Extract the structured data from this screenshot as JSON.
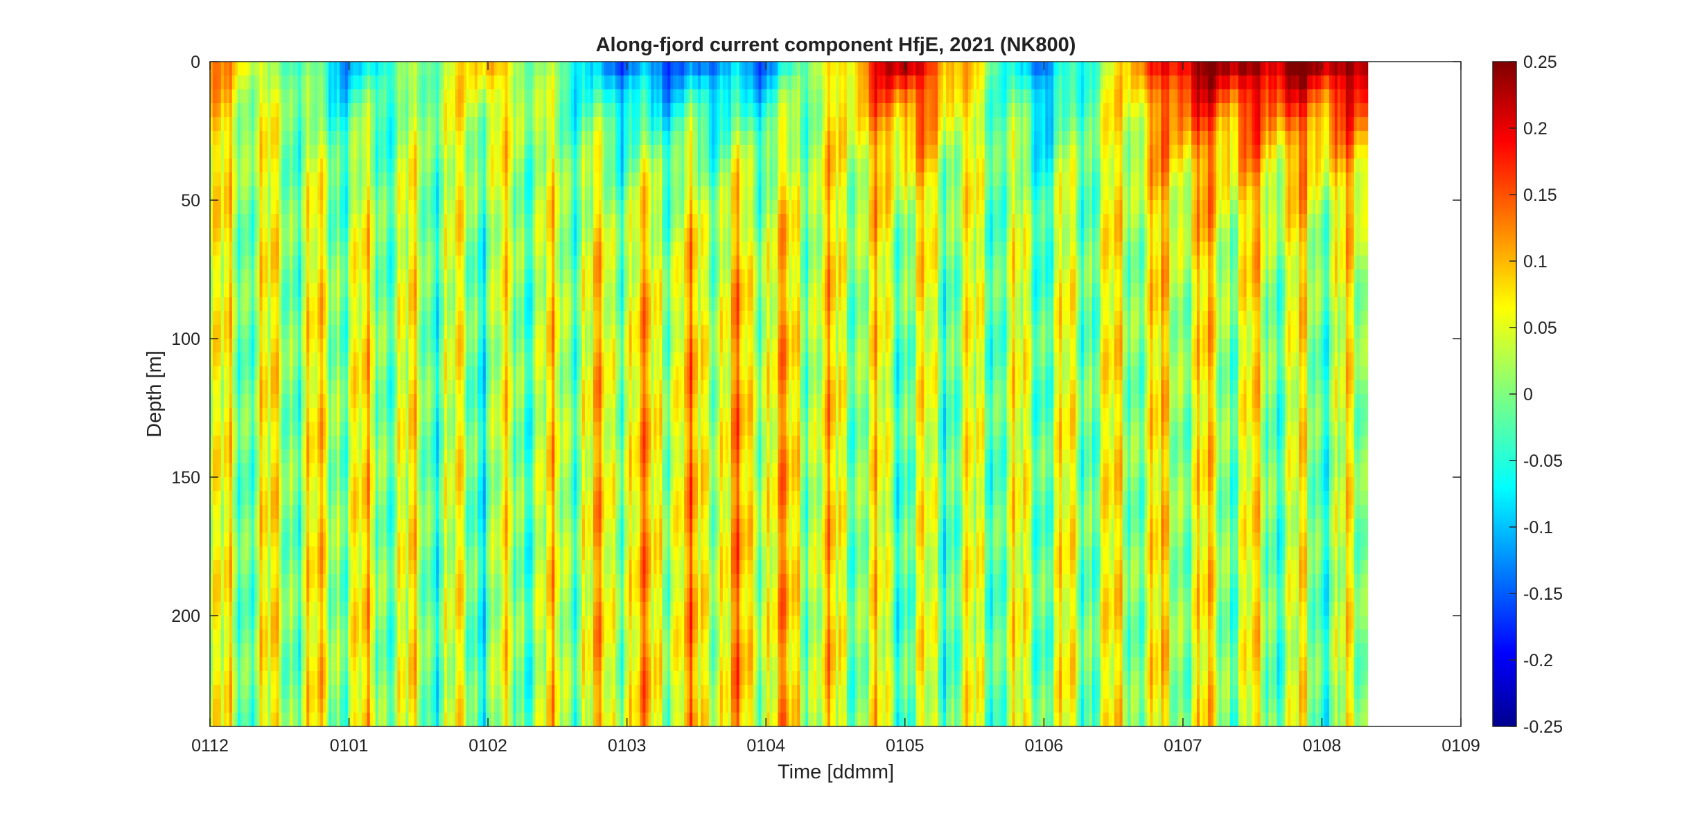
{
  "chart_data": {
    "type": "heatmap",
    "title": "Along-fjord current component HfjE, 2021 (NK800)",
    "xlabel": "Time [ddmm]",
    "ylabel": "Depth [m]",
    "x_ticks": [
      "0112",
      "0101",
      "0102",
      "0103",
      "0104",
      "0105",
      "0106",
      "0107",
      "0108",
      "0109"
    ],
    "x_range": [
      "0112",
      "0109"
    ],
    "data_extent": [
      "0112",
      "0108"
    ],
    "y_ticks": [
      0,
      50,
      100,
      150,
      200
    ],
    "ylim": [
      0,
      240
    ],
    "y_reversed": true,
    "colorbar": {
      "colormap": "jet",
      "clim": [
        -0.25,
        0.25
      ],
      "ticks": [
        "0.25",
        "0.2",
        "0.15",
        "0.1",
        "0.05",
        "0",
        "-0.05",
        "-0.1",
        "-0.15",
        "-0.2",
        "-0.25"
      ]
    },
    "values_by_month": [
      {
        "x": "0112",
        "surface": 0.12,
        "deep": 0.02
      },
      {
        "x": "0101",
        "surface": -0.1,
        "deep": 0.04
      },
      {
        "x": "0102",
        "surface": 0.1,
        "deep": 0.0
      },
      {
        "x": "0103",
        "surface": -0.15,
        "deep": 0.06
      },
      {
        "x": "0104",
        "surface": -0.12,
        "deep": 0.07
      },
      {
        "x": "0105",
        "surface": 0.25,
        "deep": 0.01
      },
      {
        "x": "0106",
        "surface": -0.14,
        "deep": 0.02
      },
      {
        "x": "0107",
        "surface": 0.24,
        "deep": 0.04
      },
      {
        "x": "0108",
        "surface": 0.25,
        "deep": 0.01
      }
    ],
    "grid": false
  }
}
